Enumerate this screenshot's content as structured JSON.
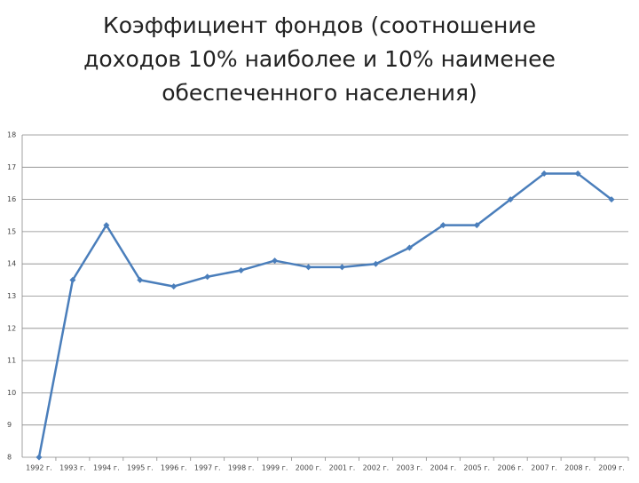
{
  "chart_data": {
    "type": "line",
    "title": [
      "Коэффициент фондов (соотношение",
      "доходов 10% наиболее и 10% наименее",
      "обеспеченного населения)"
    ],
    "categories": [
      "1992 г.",
      "1993 г.",
      "1994 г.",
      "1995 г.",
      "1996 г.",
      "1997 г.",
      "1998 г.",
      "1999 г.",
      "2000 г.",
      "2001 г.",
      "2002 г.",
      "2003 г.",
      "2004 г.",
      "2005 г.",
      "2006 г.",
      "2007 г.",
      "2008 г.",
      "2009 г."
    ],
    "values": [
      8,
      13.5,
      15.2,
      13.5,
      13.3,
      13.6,
      13.8,
      14.1,
      13.9,
      13.9,
      14.0,
      14.5,
      15.2,
      15.2,
      16.0,
      16.8,
      16.8,
      16.0
    ],
    "color": "#4a7ebb",
    "ylim": [
      8,
      18
    ],
    "yticks": [
      8,
      9,
      10,
      11,
      12,
      13,
      14,
      15,
      16,
      17,
      18
    ],
    "grid": true
  }
}
